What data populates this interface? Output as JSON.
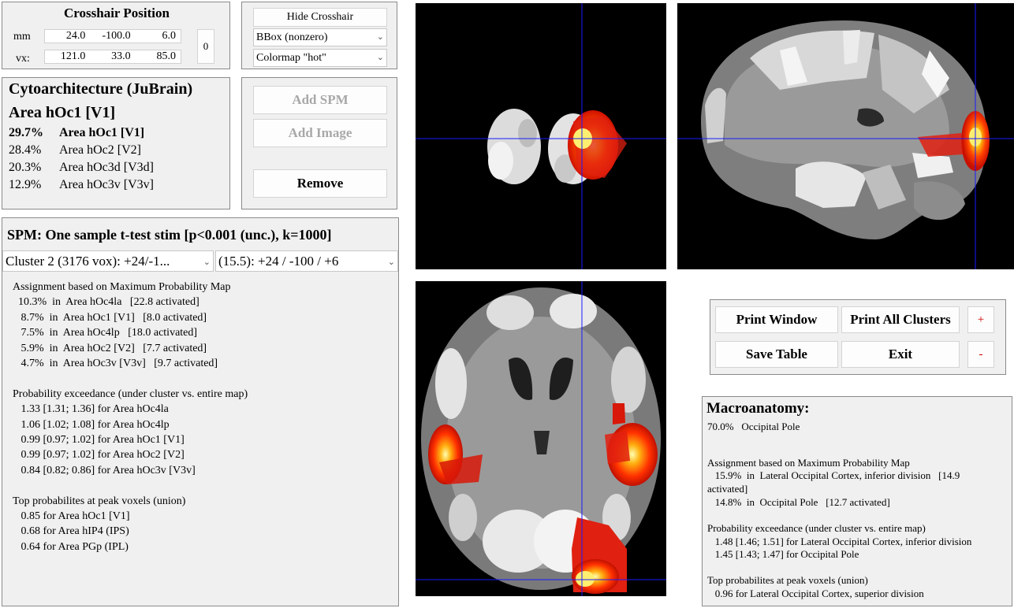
{
  "crosshair": {
    "title": "Crosshair Position",
    "mm_label": "mm",
    "vx_label": "vx:",
    "mm": [
      "24.0",
      "-100.0",
      "6.0"
    ],
    "vx": [
      "121.0",
      "33.0",
      "85.0"
    ],
    "zero_button": "0"
  },
  "controls": {
    "hide_crosshair": "Hide Crosshair",
    "bbox": "BBox (nonzero)",
    "colormap": "Colormap \"hot\""
  },
  "cyto": {
    "title": "Cytoarchitecture (JuBrain)",
    "area": "Area hOc1 [V1]",
    "rows": [
      {
        "pct": "29.7%",
        "name": "Area hOc1 [V1]"
      },
      {
        "pct": "28.4%",
        "name": "Area hOc2 [V2]"
      },
      {
        "pct": "20.3%",
        "name": "Area hOc3d [V3d]"
      },
      {
        "pct": "12.9%",
        "name": "Area hOc3v [V3v]"
      }
    ]
  },
  "image_buttons": {
    "add_spm": "Add SPM",
    "add_image": "Add Image",
    "remove": "Remove"
  },
  "spm": {
    "title": "SPM: One sample t-test stim [p<0.001 (unc.), k=1000]",
    "cluster_select": "Cluster 2 (3176 vox): +24/-1...",
    "peak_select": "(15.5):  +24 / -100 /  +6",
    "lines": [
      "Assignment based on Maximum Probability Map",
      "  10.3%  in  Area hOc4la   [22.8 activated]",
      "   8.7%  in  Area hOc1 [V1]   [8.0 activated]",
      "   7.5%  in  Area hOc4lp   [18.0 activated]",
      "   5.9%  in  Area hOc2 [V2]   [7.7 activated]",
      "   4.7%  in  Area hOc3v [V3v]   [9.7 activated]",
      "",
      "Probability exceedance (under cluster vs. entire map)",
      "   1.33 [1.31; 1.36] for Area hOc4la",
      "   1.06 [1.02; 1.08] for Area hOc4lp",
      "   0.99 [0.97; 1.02] for Area hOc1 [V1]",
      "   0.99 [0.97; 1.02] for Area hOc2 [V2]",
      "   0.84 [0.82; 0.86] for Area hOc3v [V3v]",
      "",
      "Top probabilites at peak voxels (union)",
      "   0.85 for Area hOc1 [V1]",
      "   0.68 for Area hIP4 (IPS)",
      "   0.64 for Area PGp (IPL)"
    ]
  },
  "print_buttons": {
    "print_window": "Print Window",
    "print_all": "Print All Clusters",
    "plus": "+",
    "save_table": "Save Table",
    "exit": "Exit",
    "minus": "-"
  },
  "macro": {
    "title": "Macroanatomy:",
    "lines": [
      "70.0%   Occipital Pole",
      "",
      "",
      "Assignment based on Maximum Probability Map",
      "   15.9%  in  Lateral Occipital Cortex, inferior division   [14.9",
      "activated]",
      "   14.8%  in  Occipital Pole   [12.7 activated]",
      "",
      "Probability exceedance (under cluster vs. entire map)",
      "   1.48 [1.46; 1.51] for Lateral Occipital Cortex, inferior division",
      "   1.45 [1.43; 1.47] for Occipital Pole",
      "",
      "Top probabilites at peak voxels (union)",
      "   0.96 for Lateral Occipital Cortex, superior division"
    ]
  }
}
